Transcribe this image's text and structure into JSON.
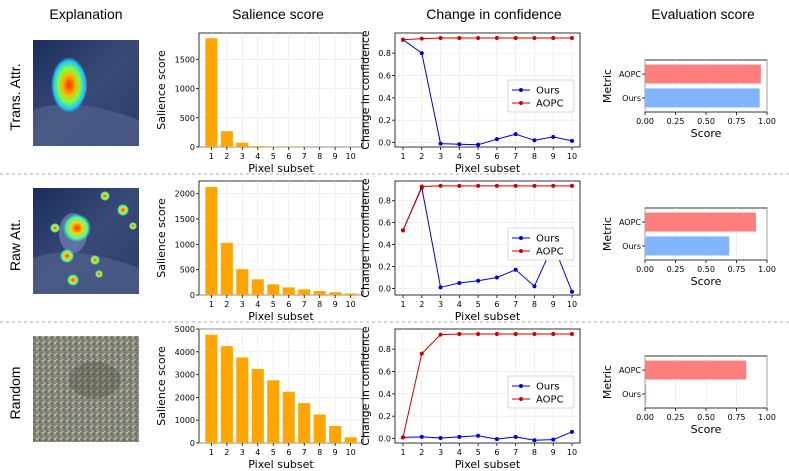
{
  "headers": {
    "explanation": "Explanation",
    "salience": "Salience score",
    "confidence": "Change in confidence",
    "evaluation": "Evaluation score"
  },
  "colors": {
    "bar_orange": "#ffa500",
    "ours_blue": "#0000cc",
    "aopc_red": "#cc0000",
    "eval_red": "#ff7f7f",
    "eval_blue": "#80b4ff",
    "grid": "#e6e6e6",
    "divider": "#999999"
  },
  "rows": [
    {
      "label": "Trans. Attr.",
      "image_type": "heatmap-focused",
      "salience": {
        "title": "",
        "xlabel": "Pixel subset",
        "ylabel": "Salience score",
        "categories": [
          "1",
          "2",
          "3",
          "4",
          "5",
          "6",
          "7",
          "8",
          "9",
          "10"
        ],
        "values": [
          1860,
          270,
          75,
          15,
          6,
          4,
          3,
          2,
          1,
          1
        ],
        "ylim": [
          0,
          1950
        ],
        "yticks": [
          0,
          500,
          1000,
          1500
        ]
      },
      "confidence": {
        "xlabel": "Pixel subset",
        "ylabel": "Change in confidence",
        "x": [
          "1",
          "2",
          "3",
          "4",
          "5",
          "6",
          "7",
          "8",
          "9",
          "10"
        ],
        "series": [
          {
            "name": "Ours",
            "values": [
              0.92,
              0.8,
              -0.01,
              -0.015,
              -0.02,
              0.03,
              0.075,
              0.02,
              0.05,
              0.015
            ]
          },
          {
            "name": "AOPC",
            "values": [
              0.92,
              0.93,
              0.935,
              0.935,
              0.935,
              0.935,
              0.935,
              0.935,
              0.935,
              0.935
            ]
          }
        ],
        "ylim": [
          -0.04,
          0.98
        ],
        "yticks": [
          0.0,
          0.2,
          0.4,
          0.6,
          0.8
        ],
        "ytick_labels": [
          "0.0",
          "0.2",
          "0.4",
          "0.6",
          "0.8"
        ],
        "legend": [
          "Ours",
          "AOPC"
        ]
      },
      "evaluation": {
        "xlabel": "Score",
        "ylabel": "Metric",
        "categories": [
          "AOPC",
          "Ours"
        ],
        "values": [
          0.95,
          0.94
        ],
        "xlim": [
          0,
          1.0
        ],
        "xticks": [
          "0.00",
          "0.25",
          "0.50",
          "0.75",
          "1.00"
        ]
      }
    },
    {
      "label": "Raw Att.",
      "image_type": "heatmap-scattered",
      "salience": {
        "title": "",
        "xlabel": "Pixel subset",
        "ylabel": "Salience score",
        "categories": [
          "1",
          "2",
          "3",
          "4",
          "5",
          "6",
          "7",
          "8",
          "9",
          "10"
        ],
        "values": [
          2130,
          1030,
          510,
          310,
          210,
          150,
          110,
          80,
          55,
          30
        ],
        "ylim": [
          0,
          2250
        ],
        "yticks": [
          0,
          500,
          1000,
          1500,
          2000
        ]
      },
      "confidence": {
        "xlabel": "Pixel subset",
        "ylabel": "Change in confidence",
        "x": [
          "1",
          "2",
          "3",
          "4",
          "5",
          "6",
          "7",
          "8",
          "9",
          "10"
        ],
        "series": [
          {
            "name": "Ours",
            "values": [
              0.53,
              0.92,
              0.01,
              0.05,
              0.07,
              0.1,
              0.17,
              0.02,
              0.4,
              -0.03
            ]
          },
          {
            "name": "AOPC",
            "values": [
              0.53,
              0.93,
              0.935,
              0.935,
              0.935,
              0.935,
              0.935,
              0.935,
              0.935,
              0.935
            ]
          }
        ],
        "ylim": [
          -0.06,
          0.98
        ],
        "yticks": [
          0.0,
          0.2,
          0.4,
          0.6,
          0.8
        ],
        "ytick_labels": [
          "0.0",
          "0.2",
          "0.4",
          "0.6",
          "0.8"
        ],
        "legend": [
          "Ours",
          "AOPC"
        ]
      },
      "evaluation": {
        "xlabel": "Score",
        "ylabel": "Metric",
        "categories": [
          "AOPC",
          "Ours"
        ],
        "values": [
          0.91,
          0.69
        ],
        "xlim": [
          0,
          1.0
        ],
        "xticks": [
          "0.00",
          "0.25",
          "0.50",
          "0.75",
          "1.00"
        ]
      }
    },
    {
      "label": "Random",
      "image_type": "noise",
      "salience": {
        "title": "",
        "xlabel": "Pixel subset",
        "ylabel": "Salience score",
        "categories": [
          "1",
          "2",
          "3",
          "4",
          "5",
          "6",
          "7",
          "8",
          "9",
          "10"
        ],
        "values": [
          4750,
          4250,
          3750,
          3250,
          2750,
          2250,
          1750,
          1250,
          750,
          250
        ],
        "ylim": [
          0,
          5000
        ],
        "yticks": [
          0,
          1000,
          2000,
          3000,
          4000,
          5000
        ]
      },
      "confidence": {
        "xlabel": "Pixel subset",
        "ylabel": "Change in confidence",
        "x": [
          "1",
          "2",
          "3",
          "4",
          "5",
          "6",
          "7",
          "8",
          "9",
          "10"
        ],
        "series": [
          {
            "name": "Ours",
            "values": [
              0.01,
              0.015,
              0.005,
              0.015,
              0.025,
              -0.005,
              0.015,
              -0.015,
              -0.01,
              0.06
            ]
          },
          {
            "name": "AOPC",
            "values": [
              0.01,
              0.76,
              0.93,
              0.935,
              0.935,
              0.935,
              0.935,
              0.935,
              0.935,
              0.935
            ]
          }
        ],
        "ylim": [
          -0.04,
          0.98
        ],
        "yticks": [
          0.0,
          0.2,
          0.4,
          0.6,
          0.8
        ],
        "ytick_labels": [
          "0.0",
          "0.2",
          "0.4",
          "0.6",
          "0.8"
        ],
        "legend": [
          "Ours",
          "AOPC"
        ]
      },
      "evaluation": {
        "xlabel": "Score",
        "ylabel": "Metric",
        "categories": [
          "AOPC",
          "Ours"
        ],
        "values": [
          0.83,
          0.01
        ],
        "xlim": [
          0,
          1.0
        ],
        "xticks": [
          "0.00",
          "0.25",
          "0.50",
          "0.75",
          "1.00"
        ]
      }
    }
  ]
}
